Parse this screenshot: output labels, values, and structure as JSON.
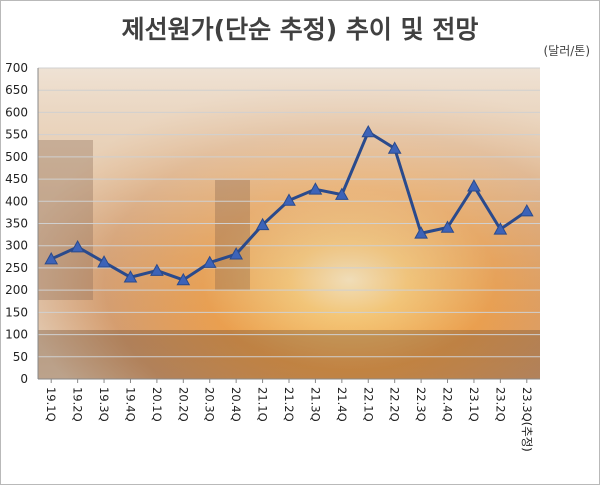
{
  "title": "제선원가(단순 추정) 추이 및 전망",
  "unit": "(달러/톤)",
  "colors": {
    "line": "#2a4a8c",
    "marker": "#3d63b8",
    "grid": "#d0d0d0",
    "background_glow": "#f4a540"
  },
  "chart_data": {
    "type": "line",
    "title": "제선원가(단순 추정) 추이 및 전망",
    "ylabel": "(달러/톤)",
    "ylim": [
      0,
      700
    ],
    "yticks": [
      0,
      50,
      100,
      150,
      200,
      250,
      300,
      350,
      400,
      450,
      500,
      550,
      600,
      650,
      700
    ],
    "grid": true,
    "categories": [
      "19.1Q",
      "19.2Q",
      "19.3Q",
      "19.4Q",
      "20.1Q",
      "20.2Q",
      "20.3Q",
      "20.4Q",
      "21.1Q",
      "21.2Q",
      "21.3Q",
      "21.4Q",
      "22.1Q",
      "22.2Q",
      "22.3Q",
      "22.4Q",
      "23.1Q",
      "23.2Q",
      "23.3Q(추정)"
    ],
    "series": [
      {
        "values": [
          270,
          297,
          263,
          229,
          244,
          223,
          262,
          281,
          347,
          402,
          427,
          415,
          556,
          519,
          328,
          341,
          434,
          337,
          378
        ],
        "marker": "triangle"
      }
    ]
  }
}
